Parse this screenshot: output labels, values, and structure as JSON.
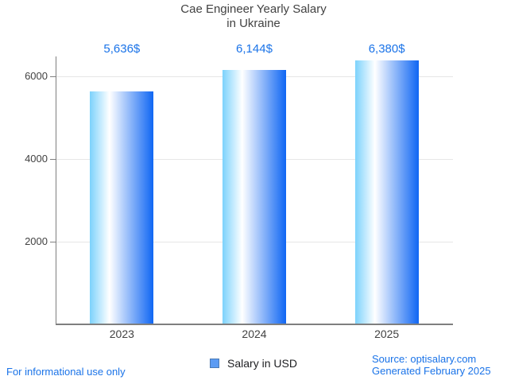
{
  "chart_data": {
    "type": "bar",
    "title": "Cae Engineer Yearly Salary in Ukraine",
    "title_lines": [
      "Cae Engineer Yearly Salary",
      "in Ukraine"
    ],
    "categories": [
      "2023",
      "2024",
      "2025"
    ],
    "values": [
      5636,
      6144,
      6380
    ],
    "value_labels": [
      "5,636$",
      "6,144$",
      "6,380$"
    ],
    "series": [
      {
        "name": "Salary in USD",
        "values": [
          5636,
          6144,
          6380
        ]
      }
    ],
    "xlabel": "",
    "ylabel": "",
    "ylim": [
      0,
      6480
    ],
    "yticks": [
      2000,
      4000,
      6000
    ],
    "grid": true,
    "legend_position": "bottom"
  },
  "footer": {
    "left": "For informational use only",
    "source_line1": "Source: optisalary.com",
    "source_line2": "Generated February 2025"
  },
  "colors": {
    "title": "#424242",
    "axis_label": "#424242",
    "axis_line": "#7f7f7f",
    "gridline": "#e6e6e6",
    "value_label": "#1a73e8",
    "footer": "#1a73e8",
    "bar_start": "#7cd2fc",
    "bar_mid": "#ffffff",
    "bar_end": "#0f66f3",
    "legend_fill": "#5b9bf3",
    "legend_border": "#4a7ab5"
  }
}
